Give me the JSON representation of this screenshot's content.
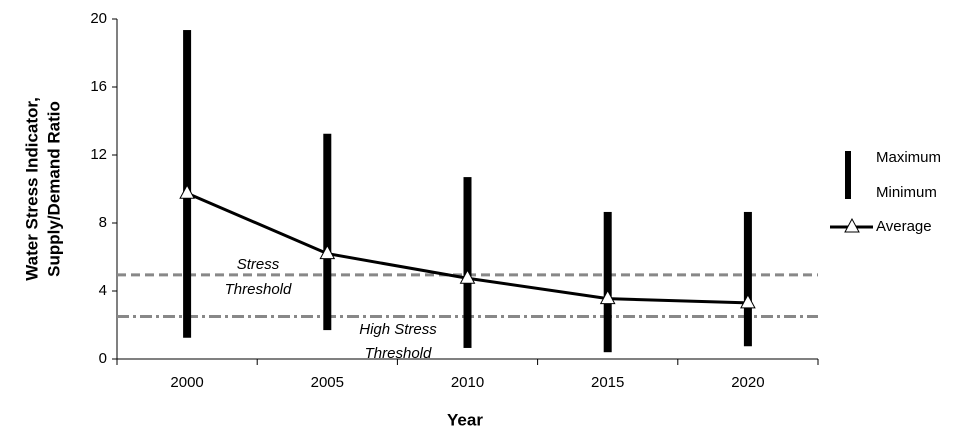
{
  "chart_data": {
    "type": "hilo",
    "ylabel": [
      "Water Stress Indicator,",
      "Supply/Demand Ratio"
    ],
    "xlabel": "Year",
    "categories": [
      "2000",
      "2005",
      "2010",
      "2015",
      "2020"
    ],
    "series": [
      {
        "name": "Maximum",
        "color": "#000000",
        "values": [
          19.35,
          13.25,
          10.7,
          8.65,
          8.65
        ]
      },
      {
        "name": "Minimum",
        "color": "#000000",
        "values": [
          1.25,
          1.7,
          0.65,
          0.4,
          0.75
        ]
      },
      {
        "name": "Average",
        "color": "#000000",
        "marker": "triangle",
        "values": [
          9.75,
          6.2,
          4.75,
          3.55,
          3.3
        ]
      }
    ],
    "thresholds": [
      {
        "label": [
          "Stress",
          "Threshold"
        ],
        "value": 4.95,
        "color": "#888888",
        "dash": "dash"
      },
      {
        "label": [
          "High Stress",
          "Threshold"
        ],
        "value": 2.5,
        "color": "#888888",
        "dash": "dashdot"
      }
    ],
    "ylim": [
      0,
      20
    ],
    "yticks": [
      0,
      4,
      8,
      12,
      16,
      20
    ]
  }
}
